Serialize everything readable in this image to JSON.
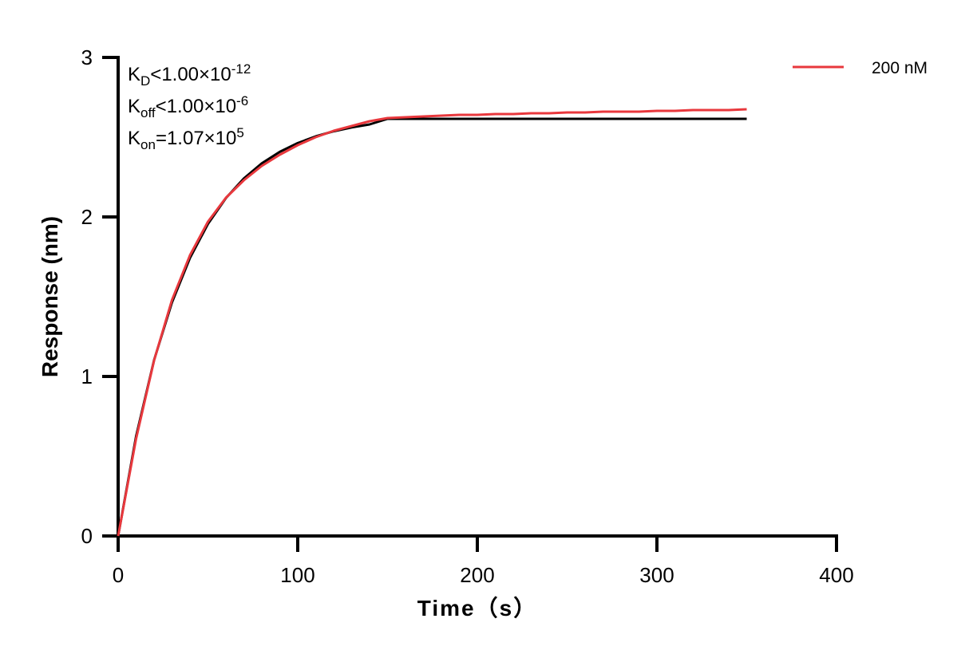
{
  "chart_data": {
    "type": "line",
    "title": "",
    "xlabel": "Time（s）",
    "ylabel": "Response (nm)",
    "xlim": [
      0,
      400
    ],
    "ylim": [
      0,
      3
    ],
    "xticks": [
      "0",
      "100",
      "200",
      "300",
      "400"
    ],
    "yticks": [
      "0",
      "1",
      "2",
      "3"
    ],
    "grid": false,
    "legend_placement": "top-right",
    "annotations": {
      "kd": {
        "k": "K",
        "sub": "D",
        "rel": "<1.00×10",
        "exp": "-12"
      },
      "koff": {
        "k": "K",
        "sub": "off",
        "rel": "<1.00×10",
        "exp": "-6"
      },
      "kon": {
        "k": "K",
        "sub": "on",
        "rel": "=1.07×10",
        "exp": "5"
      }
    },
    "series": [
      {
        "name": "200 nM",
        "color": "#e8383d",
        "x": [
          0,
          10,
          20,
          30,
          40,
          50,
          60,
          70,
          80,
          90,
          100,
          110,
          120,
          130,
          140,
          150,
          160,
          170,
          180,
          190,
          200,
          210,
          220,
          230,
          240,
          250,
          260,
          270,
          280,
          290,
          300,
          310,
          320,
          330,
          340,
          350
        ],
        "y": [
          0,
          0.61,
          1.1,
          1.48,
          1.76,
          1.97,
          2.12,
          2.23,
          2.32,
          2.39,
          2.45,
          2.5,
          2.54,
          2.57,
          2.6,
          2.62,
          2.625,
          2.63,
          2.635,
          2.64,
          2.64,
          2.645,
          2.645,
          2.65,
          2.65,
          2.655,
          2.655,
          2.66,
          2.66,
          2.66,
          2.665,
          2.665,
          2.67,
          2.67,
          2.67,
          2.675
        ]
      },
      {
        "name": "",
        "color": "#000000",
        "x": [
          0,
          10,
          20,
          30,
          40,
          50,
          60,
          70,
          80,
          90,
          100,
          110,
          120,
          130,
          140,
          150,
          350
        ],
        "y": [
          0,
          0.625,
          1.102,
          1.465,
          1.743,
          1.956,
          2.118,
          2.241,
          2.336,
          2.408,
          2.463,
          2.505,
          2.537,
          2.561,
          2.58,
          2.615,
          2.615
        ]
      }
    ]
  }
}
